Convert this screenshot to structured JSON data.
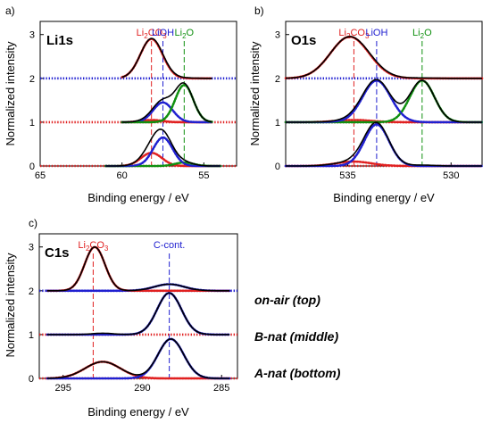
{
  "chart_data": [
    {
      "id": "li1s",
      "type": "line",
      "panel_label": "a)",
      "title": "Li1s",
      "xlabel": "Binding energy / eV",
      "ylabel": "Normalized intensity",
      "xlim": [
        65,
        53
      ],
      "ylim": [
        0,
        3.3
      ],
      "xticks": [
        65,
        60,
        55
      ],
      "yticks": [
        0,
        1,
        2,
        3
      ],
      "reference_lines": [
        {
          "x": 58.2,
          "label_main": "Li",
          "label_sub": "2",
          "label_rest": "CO",
          "label_sub2": "3",
          "color": "#e02020"
        },
        {
          "x": 57.5,
          "label_main": "LiOH",
          "label_sub": "",
          "label_rest": "",
          "label_sub2": "",
          "color": "#2020d0"
        },
        {
          "x": 56.2,
          "label_main": "Li",
          "label_sub": "2",
          "label_rest": "O",
          "label_sub2": "",
          "color": "#109010"
        }
      ],
      "traces": [
        {
          "name": "on-air",
          "offset": 2,
          "components": [
            {
              "species": "Li2CO3",
              "center": 58.2,
              "fwhm": 1.6,
              "height": 0.9,
              "color": "#e02020"
            },
            {
              "species": "LiOH",
              "center": 57.5,
              "fwhm": 1.4,
              "height": 0.02,
              "color": "#2020d0"
            },
            {
              "species": "Li2O",
              "center": 56.2,
              "fwhm": 1.4,
              "height": 0.01,
              "color": "#109010"
            }
          ],
          "xrange": [
            60,
            54.5
          ]
        },
        {
          "name": "B-nat",
          "offset": 1,
          "components": [
            {
              "species": "Li2CO3",
              "center": 58.2,
              "fwhm": 1.5,
              "height": 0.05,
              "color": "#e02020"
            },
            {
              "species": "LiOH",
              "center": 57.5,
              "fwhm": 1.4,
              "height": 0.45,
              "color": "#2020d0"
            },
            {
              "species": "Li2O",
              "center": 56.2,
              "fwhm": 1.3,
              "height": 0.85,
              "color": "#109010"
            }
          ],
          "xrange": [
            60,
            54.5
          ]
        },
        {
          "name": "A-nat",
          "offset": 0,
          "components": [
            {
              "species": "Li2CO3",
              "center": 58.2,
              "fwhm": 1.5,
              "height": 0.3,
              "color": "#e02020"
            },
            {
              "species": "LiOH",
              "center": 57.5,
              "fwhm": 1.4,
              "height": 0.65,
              "color": "#2020d0"
            },
            {
              "species": "Li2O",
              "center": 56.2,
              "fwhm": 1.3,
              "height": 0.08,
              "color": "#109010"
            }
          ],
          "xrange": [
            61,
            54
          ]
        }
      ]
    },
    {
      "id": "o1s",
      "type": "line",
      "panel_label": "b)",
      "title": "O1s",
      "xlabel": "Binding energy / eV",
      "ylabel": "Normalized intensity",
      "xlim": [
        538,
        528.5
      ],
      "ylim": [
        0,
        3.3
      ],
      "xticks": [
        535,
        530
      ],
      "yticks": [
        0,
        1,
        2,
        3
      ],
      "reference_lines": [
        {
          "x": 534.7,
          "label_main": "Li",
          "label_sub": "2",
          "label_rest": "CO",
          "label_sub2": "3",
          "color": "#e02020"
        },
        {
          "x": 533.6,
          "label_main": "LiOH",
          "label_sub": "",
          "label_rest": "",
          "label_sub2": "",
          "color": "#2020d0"
        },
        {
          "x": 531.4,
          "label_main": "Li",
          "label_sub": "2",
          "label_rest": "O",
          "label_sub2": "",
          "color": "#109010"
        }
      ],
      "traces": [
        {
          "name": "on-air",
          "offset": 2,
          "components": [
            {
              "species": "Li2CO3",
              "center": 534.9,
              "fwhm": 2.2,
              "height": 0.95,
              "color": "#e02020"
            },
            {
              "species": "LiOH",
              "center": 533.6,
              "fwhm": 1.6,
              "height": 0.02,
              "color": "#2020d0"
            },
            {
              "species": "Li2O",
              "center": 531.4,
              "fwhm": 1.4,
              "height": 0.01,
              "color": "#109010"
            }
          ],
          "xrange": [
            538,
            528.5
          ]
        },
        {
          "name": "B-nat",
          "offset": 1,
          "components": [
            {
              "species": "Li2CO3",
              "center": 534.7,
              "fwhm": 2.0,
              "height": 0.05,
              "color": "#e02020"
            },
            {
              "species": "LiOH",
              "center": 533.6,
              "fwhm": 1.6,
              "height": 0.95,
              "color": "#2020d0"
            },
            {
              "species": "Li2O",
              "center": 531.4,
              "fwhm": 1.4,
              "height": 0.95,
              "color": "#109010"
            }
          ],
          "xrange": [
            538,
            528.5
          ]
        },
        {
          "name": "A-nat",
          "offset": 0,
          "components": [
            {
              "species": "Li2CO3",
              "center": 534.7,
              "fwhm": 2.0,
              "height": 0.1,
              "color": "#e02020"
            },
            {
              "species": "LiOH",
              "center": 533.6,
              "fwhm": 1.4,
              "height": 0.95,
              "color": "#2020d0"
            },
            {
              "species": "Li2O",
              "center": 531.4,
              "fwhm": 1.4,
              "height": 0.02,
              "color": "#109010"
            }
          ],
          "xrange": [
            538,
            528.5
          ]
        }
      ]
    },
    {
      "id": "c1s",
      "type": "line",
      "panel_label": "c)",
      "title": "C1s",
      "xlabel": "Binding energy / eV",
      "ylabel": "Normalized intensity",
      "xlim": [
        296.5,
        284
      ],
      "ylim": [
        0,
        3.3
      ],
      "xticks": [
        295,
        290,
        285
      ],
      "yticks": [
        0,
        1,
        2,
        3
      ],
      "reference_lines": [
        {
          "x": 293.1,
          "label_main": "Li",
          "label_sub": "2",
          "label_rest": "CO",
          "label_sub2": "3",
          "color": "#e02020"
        },
        {
          "x": 288.3,
          "label_main": "C-cont.",
          "label_sub": "",
          "label_rest": "",
          "label_sub2": "",
          "color": "#2020d0"
        }
      ],
      "traces": [
        {
          "name": "on-air",
          "offset": 2,
          "components": [
            {
              "species": "Li2CO3",
              "center": 293.0,
              "fwhm": 1.5,
              "height": 1.0,
              "color": "#e02020"
            },
            {
              "species": "C-cont",
              "center": 288.3,
              "fwhm": 2.2,
              "height": 0.15,
              "color": "#2020d0"
            }
          ],
          "xrange": [
            296,
            284.5
          ]
        },
        {
          "name": "B-nat",
          "offset": 1,
          "components": [
            {
              "species": "Li2CO3",
              "center": 292.5,
              "fwhm": 1.6,
              "height": 0.03,
              "color": "#e02020"
            },
            {
              "species": "C-cont",
              "center": 288.3,
              "fwhm": 1.8,
              "height": 0.95,
              "color": "#2020d0"
            }
          ],
          "xrange": [
            296,
            284.5
          ]
        },
        {
          "name": "A-nat",
          "offset": 0,
          "components": [
            {
              "species": "Li2CO3",
              "center": 292.5,
              "fwhm": 2.6,
              "height": 0.38,
              "color": "#e02020"
            },
            {
              "species": "C-cont",
              "center": 288.2,
              "fwhm": 1.9,
              "height": 0.9,
              "color": "#2020d0"
            }
          ],
          "xrange": [
            296,
            284.5
          ]
        }
      ]
    }
  ],
  "legend": [
    {
      "label": "on-air (top)"
    },
    {
      "label": "B-nat (middle)"
    },
    {
      "label": "A-nat (bottom)"
    }
  ],
  "colors": {
    "envelope": "#000000",
    "baseline_green": "#109010",
    "baseline_red": "#e02020",
    "baseline_blue": "#2020d0"
  }
}
